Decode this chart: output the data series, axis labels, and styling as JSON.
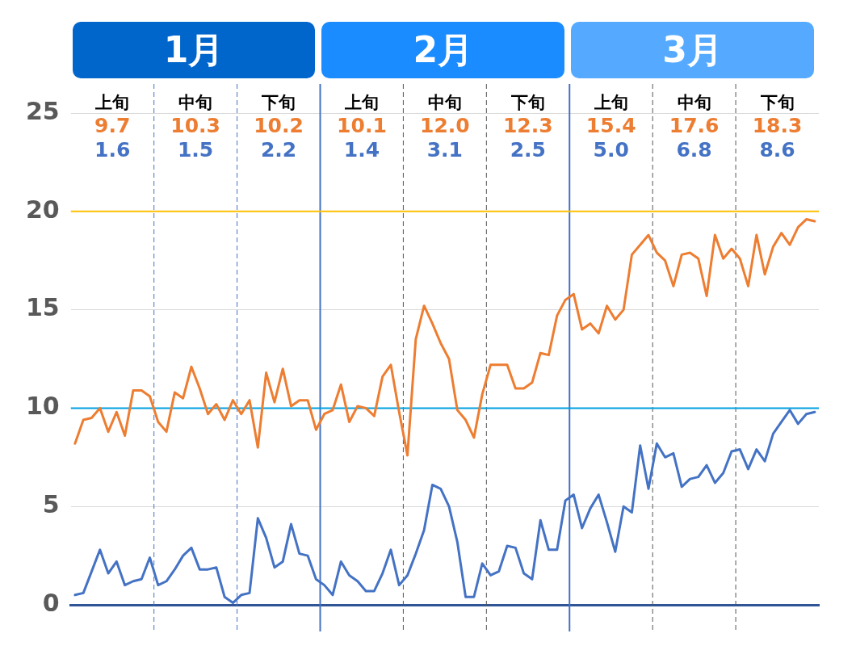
{
  "chart_data": {
    "type": "line",
    "categories": [
      null,
      null,
      null,
      null,
      null,
      null,
      null,
      null,
      null,
      null,
      null,
      null,
      null,
      null,
      null,
      null,
      null,
      null,
      null,
      null,
      null,
      null,
      null,
      null,
      null,
      null,
      null,
      null,
      null,
      null,
      null,
      null,
      null,
      null,
      null,
      null,
      null,
      null,
      null,
      null,
      null,
      null,
      null,
      null,
      null,
      null,
      null,
      null,
      null,
      null,
      null,
      null,
      null,
      null,
      null,
      null,
      null,
      null,
      null,
      null,
      null,
      null,
      null,
      null,
      null,
      null,
      null,
      null,
      null,
      null,
      null,
      null,
      null,
      null,
      null,
      null,
      null,
      null,
      null,
      null,
      null,
      null,
      null,
      null,
      null,
      null,
      null,
      null,
      null,
      null
    ],
    "series": [
      {
        "color": "#ed7d31",
        "values": [
          8.2,
          9.4,
          9.5,
          10.0,
          8.8,
          9.8,
          8.6,
          10.9,
          10.9,
          10.6,
          9.3,
          8.8,
          10.8,
          10.5,
          12.1,
          11.0,
          9.7,
          10.2,
          9.4,
          10.4,
          9.7,
          10.4,
          8.0,
          11.8,
          10.3,
          12.0,
          10.1,
          10.4,
          10.4,
          8.9,
          9.7,
          9.9,
          11.2,
          9.3,
          10.1,
          10.0,
          9.6,
          11.6,
          12.2,
          9.8,
          7.6,
          13.5,
          15.2,
          14.3,
          13.3,
          12.5,
          9.9,
          9.4,
          8.5,
          10.7,
          12.2,
          12.2,
          12.2,
          11.0,
          11.0,
          11.3,
          12.8,
          12.7,
          14.7,
          15.5,
          15.8,
          14.0,
          14.3,
          13.8,
          15.2,
          14.5,
          15.0,
          17.8,
          18.3,
          18.8,
          17.9,
          17.5,
          16.2,
          17.8,
          17.9,
          17.6,
          15.7,
          18.8,
          17.6,
          18.1,
          17.6,
          16.2,
          18.8,
          16.8,
          18.2,
          18.9,
          18.3,
          19.2,
          19.6,
          19.5
        ]
      },
      {
        "color": "#4472c4",
        "values": [
          0.5,
          0.6,
          1.7,
          2.8,
          1.6,
          2.2,
          1.0,
          1.2,
          1.3,
          2.4,
          1.0,
          1.2,
          1.8,
          2.5,
          2.9,
          1.8,
          1.8,
          1.9,
          0.4,
          0.1,
          0.5,
          0.6,
          4.4,
          3.4,
          1.9,
          2.2,
          4.1,
          2.6,
          2.5,
          1.3,
          1.0,
          0.5,
          2.2,
          1.5,
          1.2,
          0.7,
          0.7,
          1.6,
          2.8,
          1.0,
          1.5,
          2.6,
          3.8,
          6.1,
          5.9,
          5.0,
          3.2,
          0.4,
          0.4,
          2.1,
          1.5,
          1.7,
          3.0,
          2.9,
          1.6,
          1.3,
          4.3,
          2.8,
          2.8,
          5.3,
          5.6,
          3.9,
          4.9,
          5.6,
          4.2,
          2.7,
          5.0,
          4.7,
          8.1,
          5.9,
          8.2,
          7.5,
          7.7,
          6.0,
          6.4,
          6.5,
          7.1,
          6.2,
          6.7,
          7.8,
          7.9,
          6.9,
          7.9,
          7.3,
          8.7,
          9.3,
          9.9,
          9.2,
          9.7,
          9.8
        ]
      }
    ],
    "ylim": [
      0,
      25
    ],
    "yticks": [
      0,
      5,
      10,
      15,
      20,
      25
    ],
    "grid": "y",
    "tick_labels": "y",
    "legend": false,
    "marker": "none",
    "line_style": "solid",
    "ref_lines": [
      {
        "axis": "y",
        "value": 10,
        "color": "#00a0e0",
        "line_style": "solid"
      },
      {
        "axis": "y",
        "value": 20,
        "color": "#ffc000",
        "line_style": "solid"
      }
    ],
    "annotations": [
      "1月",
      "2月",
      "3月",
      "上旬",
      "9.7",
      "1.6",
      "中旬",
      "10.3",
      "1.5",
      "下旬",
      "10.2",
      "2.2",
      "上旬",
      "10.1",
      "1.4",
      "中旬",
      "12.0",
      "3.1",
      "下旬",
      "12.3",
      "2.5",
      "上旬",
      "15.4",
      "5.0",
      "中旬",
      "17.6",
      "6.8",
      "下旬",
      "18.3",
      "8.6"
    ]
  }
}
